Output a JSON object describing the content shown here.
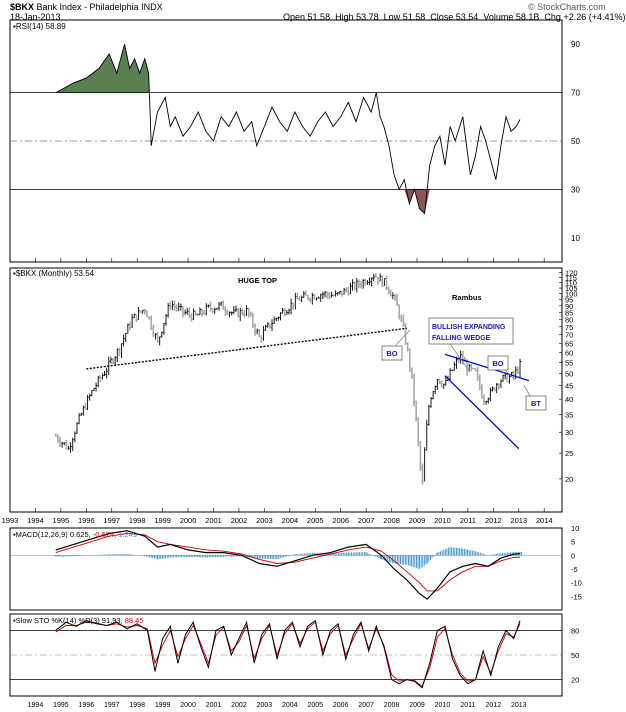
{
  "header": {
    "symbol": "$BKX",
    "name": "Bank Index - Philadelphia INDX",
    "date": "18-Jan-2013",
    "open_label": "Open",
    "open": "51.58",
    "high_label": "High",
    "high": "53.78",
    "low_label": "Low",
    "low": "51.58",
    "close_label": "Close",
    "close": "53.54",
    "volume_label": "Volume",
    "volume": "58.1B",
    "chg_label": "Chg",
    "chg": "+2.26 (+4.41%)",
    "credit": "© StockCharts.com"
  },
  "colors": {
    "rsi_overbought": "#5a7f52",
    "rsi_oversold": "#8a5555",
    "wedge": "#0010c8",
    "annotation_box": "#1a1aaa",
    "macd_hist": "#3a8fd0",
    "signal": "#cc0000",
    "bar": "#000000",
    "bar_shade": "#a8a8a8"
  },
  "chart_data": [
    {
      "type": "line",
      "panel": "rsi",
      "legend": "RSI(14) 58.89",
      "ylim": [
        0,
        100
      ],
      "ticks": [
        10,
        30,
        50,
        70,
        90
      ],
      "x": [
        1994.8,
        1995.5,
        1996,
        1996.5,
        1996.9,
        1997.2,
        1997.5,
        1997.7,
        1997.9,
        1998.1,
        1998.3,
        1998.45,
        1998.5,
        1998.55,
        1998.8,
        1999.1,
        1999.3,
        1999.5,
        1999.8,
        2000.1,
        2000.4,
        2000.7,
        2001,
        2001.3,
        2001.6,
        2001.9,
        2002.2,
        2002.5,
        2002.7,
        2003,
        2003.3,
        2003.6,
        2003.9,
        2004.2,
        2004.5,
        2004.8,
        2005.1,
        2005.4,
        2005.7,
        2006,
        2006.3,
        2006.6,
        2006.9,
        2007.2,
        2007.4,
        2007.55,
        2007.7,
        2007.9,
        2008.1,
        2008.3,
        2008.5,
        2008.7,
        2008.9,
        2009.1,
        2009.3,
        2009.5,
        2009.7,
        2009.9,
        2010.1,
        2010.3,
        2010.5,
        2010.8,
        2011.1,
        2011.3,
        2011.5,
        2011.7,
        2011.9,
        2012.1,
        2012.3,
        2012.5,
        2012.7,
        2012.9,
        2013.05
      ],
      "values": [
        70,
        74,
        76,
        80,
        86,
        78,
        90,
        80,
        84,
        78,
        84,
        78,
        64,
        48,
        62,
        68,
        56,
        60,
        52,
        56,
        62,
        54,
        50,
        60,
        56,
        62,
        54,
        58,
        48,
        56,
        64,
        58,
        54,
        62,
        56,
        52,
        58,
        62,
        56,
        60,
        66,
        58,
        68,
        62,
        70,
        60,
        56,
        48,
        36,
        30,
        34,
        24,
        30,
        22,
        20,
        40,
        48,
        52,
        40,
        56,
        50,
        60,
        36,
        44,
        56,
        50,
        42,
        34,
        48,
        60,
        54,
        56,
        58.89
      ],
      "overbought": 70,
      "oversold": 30
    },
    {
      "type": "bar",
      "panel": "price",
      "legend": "$BKX (Monthly) 53.54",
      "scale": "log",
      "ylim": [
        15,
        125
      ],
      "ticks": [
        20,
        25,
        30,
        35,
        40,
        45,
        50,
        55,
        60,
        65,
        70,
        75,
        80,
        85,
        90,
        95,
        100,
        105,
        110,
        115,
        120
      ],
      "x": [
        1994.8,
        1995.3,
        1995.8,
        1996.3,
        1996.8,
        1997.3,
        1997.8,
        1998.3,
        1998.8,
        1999.3,
        1999.8,
        2000.3,
        2000.8,
        2001.3,
        2001.8,
        2002.3,
        2002.8,
        2003.3,
        2003.8,
        2004.3,
        2004.8,
        2005.3,
        2005.8,
        2006.3,
        2006.8,
        2007.3,
        2007.8,
        2008.1,
        2008.4,
        2008.7,
        2009,
        2009.2,
        2009.5,
        2009.8,
        2010.1,
        2010.4,
        2010.7,
        2011,
        2011.3,
        2011.6,
        2011.9,
        2012.2,
        2012.5,
        2012.8,
        2013.05
      ],
      "values": [
        29,
        26,
        35,
        44,
        52,
        62,
        80,
        88,
        65,
        92,
        85,
        82,
        88,
        90,
        84,
        86,
        68,
        78,
        87,
        95,
        98,
        100,
        98,
        104,
        110,
        118,
        108,
        96,
        78,
        55,
        30,
        18,
        40,
        48,
        45,
        52,
        58,
        52,
        50,
        40,
        42,
        47,
        48,
        49,
        53.54
      ],
      "title": "HUGE TOP",
      "author": "Rambus"
    },
    {
      "type": "line",
      "panel": "macd",
      "legend_name": "MACD(12,26,9)",
      "legend_macd": "0.625",
      "legend_signal": "-0.624",
      "legend_hist": "1.249",
      "ylim": [
        -20,
        10
      ],
      "ticks": [
        -15,
        -10,
        -5,
        0,
        5,
        10
      ],
      "x": [
        1994.8,
        1995.5,
        1996.2,
        1996.9,
        1997.6,
        1998.3,
        1998.8,
        1999.3,
        2000,
        2000.7,
        2001.4,
        2002.1,
        2002.8,
        2003.5,
        2004.2,
        2004.9,
        2005.6,
        2006.3,
        2007,
        2007.6,
        2008.1,
        2008.6,
        2009.1,
        2009.4,
        2009.8,
        2010.3,
        2010.8,
        2011.3,
        2011.8,
        2012.3,
        2012.8,
        2013.05
      ],
      "series": [
        {
          "name": "MACD",
          "values": [
            2,
            4,
            6,
            8,
            9,
            7,
            3,
            4,
            2,
            1,
            1,
            0,
            -3,
            -4,
            -2,
            0,
            1,
            3,
            4,
            0,
            -5,
            -9,
            -14,
            -16,
            -12,
            -6,
            -4,
            -3,
            -4,
            -1,
            0.4,
            0.625
          ]
        },
        {
          "name": "Signal",
          "values": [
            1,
            3,
            5,
            7,
            8,
            7.5,
            5,
            4,
            3,
            2,
            1.5,
            0.5,
            -1.5,
            -3,
            -2.5,
            -1,
            0.5,
            2,
            3,
            1.5,
            -2,
            -6,
            -10,
            -13,
            -13,
            -9,
            -6,
            -4,
            -4,
            -2,
            -0.8,
            -0.624
          ]
        }
      ],
      "histogram": [
        -0.5,
        -0.3,
        0,
        0.4,
        0.5,
        -0.3,
        -1.5,
        -0.8,
        -0.6,
        -0.8,
        -0.5,
        -0.4,
        -1.2,
        -1.4,
        0.4,
        0.9,
        0.6,
        1,
        1.2,
        -1.5,
        -3,
        -3.5,
        -5,
        -3,
        1,
        3,
        2.5,
        1.5,
        0,
        0.8,
        1.2,
        1.249
      ]
    },
    {
      "type": "line",
      "panel": "sto",
      "legend_name": "Slow STO %K(14) %D(3)",
      "legend_k": "91.93",
      "legend_d": "88.45",
      "ylim": [
        0,
        100
      ],
      "ticks": [
        20,
        50,
        80
      ],
      "x": [
        1994.8,
        1995.2,
        1995.6,
        1996,
        1996.4,
        1996.8,
        1997.2,
        1997.6,
        1998,
        1998.4,
        1998.7,
        1999,
        1999.3,
        1999.6,
        1999.9,
        2000.2,
        2000.5,
        2000.8,
        2001.1,
        2001.4,
        2001.7,
        2002,
        2002.3,
        2002.6,
        2002.9,
        2003.2,
        2003.5,
        2003.8,
        2004.1,
        2004.4,
        2004.7,
        2005,
        2005.3,
        2005.6,
        2005.9,
        2006.2,
        2006.5,
        2006.8,
        2007.1,
        2007.4,
        2007.7,
        2008,
        2008.3,
        2008.6,
        2008.9,
        2009.2,
        2009.5,
        2009.8,
        2010.1,
        2010.4,
        2010.7,
        2011,
        2011.3,
        2011.6,
        2011.9,
        2012.2,
        2012.5,
        2012.8,
        2013.05
      ],
      "series": [
        {
          "name": "%K",
          "values": [
            80,
            90,
            85,
            92,
            88,
            86,
            90,
            82,
            88,
            80,
            30,
            70,
            85,
            40,
            75,
            90,
            60,
            35,
            80,
            85,
            50,
            70,
            90,
            40,
            75,
            88,
            45,
            80,
            90,
            60,
            85,
            92,
            50,
            80,
            88,
            45,
            75,
            90,
            55,
            85,
            60,
            20,
            15,
            20,
            18,
            10,
            40,
            80,
            85,
            45,
            25,
            15,
            20,
            55,
            25,
            60,
            80,
            70,
            91.93
          ]
        },
        {
          "name": "%D",
          "values": [
            78,
            86,
            86,
            90,
            89,
            86,
            88,
            84,
            86,
            82,
            40,
            62,
            80,
            48,
            70,
            86,
            64,
            40,
            74,
            84,
            55,
            66,
            86,
            46,
            70,
            86,
            50,
            76,
            88,
            64,
            82,
            90,
            55,
            76,
            86,
            50,
            70,
            88,
            58,
            82,
            62,
            26,
            18,
            20,
            19,
            12,
            34,
            72,
            82,
            50,
            28,
            18,
            20,
            48,
            28,
            55,
            76,
            72,
            88.45
          ]
        }
      ]
    }
  ],
  "annotations": {
    "rambus": "Rambus",
    "wedge_label_1": "BULLISH EXPANDING",
    "wedge_label_2": "FALLING WEDGE",
    "bo_1": "BO",
    "bo_2": "BO",
    "bt": "BT"
  },
  "x_axis": {
    "years": [
      "1993",
      "1994",
      "1995",
      "1996",
      "1997",
      "1998",
      "1999",
      "2000",
      "2001",
      "2002",
      "2003",
      "2004",
      "2005",
      "2006",
      "2007",
      "2008",
      "2009",
      "2010",
      "2011",
      "2012",
      "2013",
      "2014"
    ]
  }
}
